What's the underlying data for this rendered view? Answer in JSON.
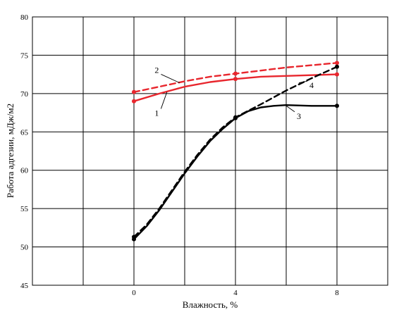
{
  "chart_data": {
    "type": "line",
    "xlabel": "Влажность, %",
    "ylabel": "Работа адгезии, мДж/м2",
    "xlim": [
      -4,
      10
    ],
    "ylim": [
      45,
      80
    ],
    "x_ticks": [
      0,
      4,
      8
    ],
    "y_ticks": [
      45,
      50,
      55,
      60,
      65,
      70,
      75,
      80
    ],
    "grid": true,
    "series": [
      {
        "name": "1",
        "color": "#e8262d",
        "style": "solid",
        "x": [
          0,
          4,
          8
        ],
        "y": [
          69.0,
          71.9,
          72.5
        ],
        "curve": [
          [
            0,
            69.0
          ],
          [
            1,
            70.0
          ],
          [
            2,
            70.9
          ],
          [
            3,
            71.5
          ],
          [
            4,
            71.9
          ],
          [
            5,
            72.2
          ],
          [
            6,
            72.3
          ],
          [
            7,
            72.4
          ],
          [
            8,
            72.5
          ]
        ]
      },
      {
        "name": "2",
        "color": "#e8262d",
        "style": "dashed",
        "x": [
          0,
          4,
          8
        ],
        "y": [
          70.2,
          72.6,
          74.0
        ],
        "curve": [
          [
            0,
            70.2
          ],
          [
            1,
            70.9
          ],
          [
            2,
            71.6
          ],
          [
            3,
            72.2
          ],
          [
            4,
            72.6
          ],
          [
            5,
            73.0
          ],
          [
            6,
            73.4
          ],
          [
            7,
            73.7
          ],
          [
            8,
            74.0
          ]
        ]
      },
      {
        "name": "3",
        "color": "#000000",
        "style": "solid",
        "x": [
          0,
          4,
          8
        ],
        "y": [
          51.0,
          66.8,
          68.4
        ],
        "curve": [
          [
            0,
            51.0
          ],
          [
            0.5,
            52.7
          ],
          [
            1,
            54.8
          ],
          [
            1.5,
            57.2
          ],
          [
            2,
            59.6
          ],
          [
            2.5,
            61.8
          ],
          [
            3,
            63.8
          ],
          [
            3.5,
            65.4
          ],
          [
            4,
            66.8
          ],
          [
            4.5,
            67.7
          ],
          [
            5,
            68.2
          ],
          [
            5.5,
            68.4
          ],
          [
            6,
            68.5
          ],
          [
            7,
            68.4
          ],
          [
            8,
            68.4
          ]
        ]
      },
      {
        "name": "4",
        "color": "#000000",
        "style": "dashed",
        "x": [
          0,
          4,
          8
        ],
        "y": [
          51.3,
          66.9,
          73.5
        ],
        "curve": [
          [
            0,
            51.3
          ],
          [
            0.5,
            52.9
          ],
          [
            1,
            55.0
          ],
          [
            1.5,
            57.4
          ],
          [
            2,
            59.8
          ],
          [
            2.5,
            62.0
          ],
          [
            3,
            64.0
          ],
          [
            3.5,
            65.6
          ],
          [
            4,
            66.9
          ],
          [
            5,
            68.6
          ],
          [
            6,
            70.4
          ],
          [
            7,
            72.0
          ],
          [
            8,
            73.5
          ]
        ]
      }
    ],
    "annotations": [
      {
        "text": "1",
        "x": 0.9,
        "y": 67.1,
        "point_x": 1.3,
        "point_y": 70.2
      },
      {
        "text": "2",
        "x": 0.9,
        "y": 72.7,
        "point_x": 1.8,
        "point_y": 71.4
      },
      {
        "text": "3",
        "x": 6.5,
        "y": 66.7,
        "point_x": 6.0,
        "point_y": 68.4
      },
      {
        "text": "4",
        "x": 7.0,
        "y": 70.7,
        "point_x": 6.5,
        "point_y": 71.4
      }
    ]
  }
}
